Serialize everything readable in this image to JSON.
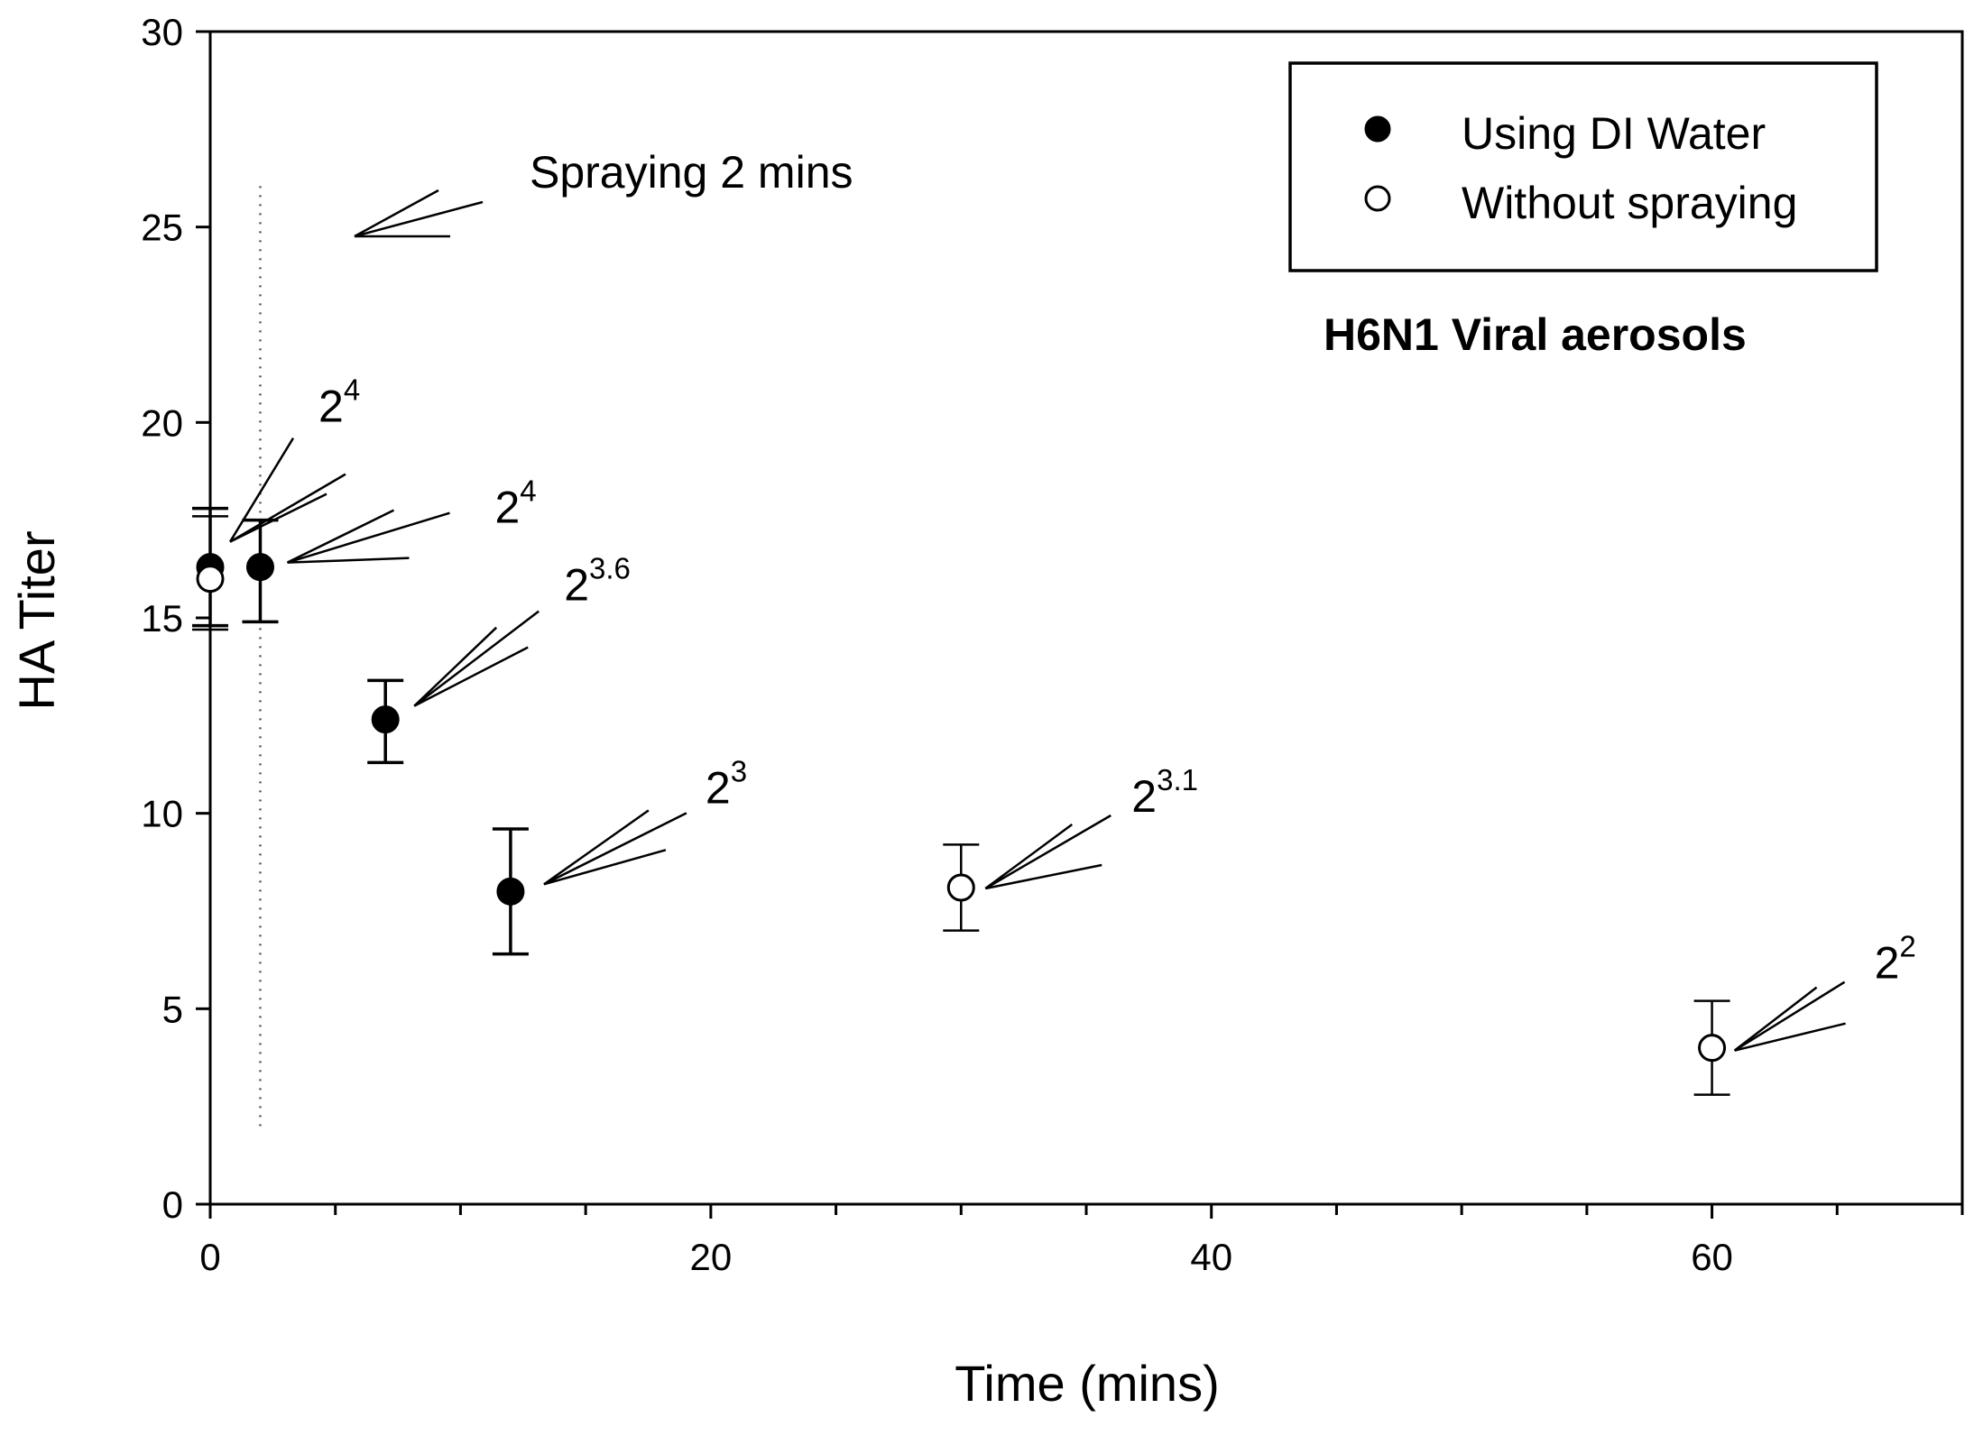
{
  "chart_data": {
    "type": "scatter",
    "title": "",
    "subtitle": "H6N1 Viral aerosols",
    "xlabel": "Time (mins)",
    "ylabel": "HA Titer",
    "xlim": [
      0,
      70
    ],
    "ylim": [
      0,
      30
    ],
    "x_major_ticks": [
      0,
      20,
      40,
      60
    ],
    "x_tick_labels": [
      "0",
      "20",
      "40",
      "60"
    ],
    "x_minor_ticks": [
      5,
      10,
      15,
      25,
      30,
      35,
      45,
      50,
      55,
      65,
      70
    ],
    "y_ticks": [
      0,
      5,
      10,
      15,
      20,
      25,
      30
    ],
    "y_tick_labels": [
      "0",
      "5",
      "10",
      "15",
      "20",
      "25",
      "30"
    ],
    "grid": false,
    "legend_position": "top-right",
    "series": [
      {
        "name": "Using DI Water",
        "marker": "filled-circle",
        "points": [
          {
            "x": 0,
            "y": 16.3,
            "err_low": 1.5,
            "err_high": 1.5
          },
          {
            "x": 2,
            "y": 16.3,
            "err_low": 1.4,
            "err_high": 1.2
          },
          {
            "x": 7,
            "y": 12.4,
            "err_low": 1.1,
            "err_high": 1.0
          },
          {
            "x": 12,
            "y": 8.0,
            "err_low": 1.6,
            "err_high": 1.6
          }
        ]
      },
      {
        "name": "Without spraying",
        "marker": "open-circle",
        "points": [
          {
            "x": 0,
            "y": 16.0,
            "err_low": 1.3,
            "err_high": 1.6
          },
          {
            "x": 30,
            "y": 8.1,
            "err_low": 1.1,
            "err_high": 1.1
          },
          {
            "x": 60,
            "y": 4.0,
            "err_low": 1.2,
            "err_high": 1.2
          }
        ]
      }
    ],
    "spray_line": {
      "x": 2,
      "y_from": 2,
      "y_to": 26.2,
      "label": "Spraying 2 mins"
    },
    "annotations": [
      {
        "base": "2",
        "exp": "4",
        "x": 0,
        "y": 16.3
      },
      {
        "base": "2",
        "exp": "4",
        "x": 2,
        "y": 16.3
      },
      {
        "base": "2",
        "exp": "3.6",
        "x": 7,
        "y": 12.4
      },
      {
        "base": "2",
        "exp": "3",
        "x": 12,
        "y": 8.0
      },
      {
        "base": "2",
        "exp": "3.1",
        "x": 30,
        "y": 8.1
      },
      {
        "base": "2",
        "exp": "2",
        "x": 60,
        "y": 4.0
      }
    ],
    "colors": {
      "ink": "#000000",
      "background": "#ffffff"
    }
  }
}
